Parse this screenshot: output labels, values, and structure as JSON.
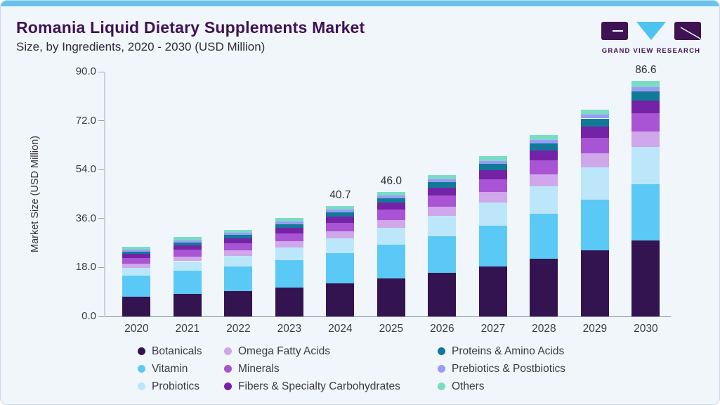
{
  "header": {
    "title": "Romania Liquid Dietary Supplements Market",
    "subtitle": "Size, by Ingredients, 2020 - 2030 (USD Million)",
    "logo_text": "GRAND VIEW RESEARCH"
  },
  "theme": {
    "card_bg": "#F1F6FA",
    "top_strip": "#67C4EF",
    "title_color": "#3F1254",
    "subtitle_color": "#2E2E38",
    "axis_text_color": "#3B3B45",
    "axis_line_color": "#C9D2DA",
    "baseline_color": "#8F979E",
    "logo_purple": "#3F1254",
    "logo_cyan": "#4EC3F0"
  },
  "chart_data": {
    "type": "bar",
    "stacked": true,
    "title": "Romania Liquid Dietary Supplements Market Size, by Ingredients, 2020 - 2030 (USD Million)",
    "xlabel": "",
    "ylabel": "Market Size (USD Million)",
    "ylim": [
      0,
      90
    ],
    "y_ticks": [
      0,
      18,
      36,
      54,
      72,
      90
    ],
    "y_tick_labels": [
      "0.0",
      "18.0",
      "36.0",
      "54.0",
      "72.0",
      "90.0"
    ],
    "grid": false,
    "legend_position": "bottom",
    "categories": [
      "2020",
      "2021",
      "2022",
      "2023",
      "2024",
      "2025",
      "2026",
      "2027",
      "2028",
      "2029",
      "2030"
    ],
    "series": [
      {
        "name": "Botanicals",
        "color": "#331450",
        "values": [
          7.3,
          8.4,
          9.3,
          10.7,
          12.2,
          14.0,
          16.0,
          18.3,
          21.1,
          24.4,
          27.9
        ]
      },
      {
        "name": "Vitamin",
        "color": "#5BC9F5",
        "values": [
          7.6,
          8.5,
          9.1,
          10.1,
          11.1,
          12.3,
          13.6,
          15.1,
          16.7,
          18.6,
          20.6
        ]
      },
      {
        "name": "Probiotics",
        "color": "#BCE7FA",
        "values": [
          2.9,
          3.4,
          3.9,
          4.6,
          5.4,
          6.3,
          7.4,
          8.6,
          10.1,
          11.9,
          13.9
        ]
      },
      {
        "name": "Omega Fatty Acids",
        "color": "#CFA7EA",
        "values": [
          1.5,
          1.7,
          1.9,
          2.2,
          2.5,
          2.9,
          3.3,
          3.8,
          4.3,
          5.0,
          5.7
        ]
      },
      {
        "name": "Minerals",
        "color": "#A854D4",
        "values": [
          2.2,
          2.5,
          2.7,
          3.0,
          3.3,
          3.7,
          4.2,
          4.7,
          5.2,
          5.9,
          6.6
        ]
      },
      {
        "name": "Fibers & Specialty Carbohydrates",
        "color": "#7523A6",
        "values": [
          1.5,
          1.7,
          1.9,
          2.1,
          2.3,
          2.6,
          2.9,
          3.3,
          3.7,
          4.1,
          4.7
        ]
      },
      {
        "name": "Proteins & Amino Acids",
        "color": "#107A98",
        "values": [
          0.9,
          1.0,
          1.1,
          1.3,
          1.5,
          1.7,
          1.9,
          2.2,
          2.6,
          2.9,
          3.4
        ]
      },
      {
        "name": "Prebiotics & Postbiotics",
        "color": "#9B9BF7",
        "values": [
          0.7,
          0.8,
          0.8,
          0.9,
          1.0,
          1.0,
          1.1,
          1.2,
          1.3,
          1.4,
          1.6
        ]
      },
      {
        "name": "Others",
        "color": "#7BDCC6",
        "values": [
          1.0,
          1.1,
          1.1,
          1.2,
          1.3,
          1.4,
          1.6,
          1.7,
          1.8,
          1.9,
          2.2
        ]
      }
    ],
    "totals": [
      25.6,
      29.1,
      31.8,
      36.1,
      40.7,
      46.0,
      52.0,
      58.9,
      66.8,
      76.1,
      86.6
    ],
    "bar_labels": {
      "2024": "40.7",
      "2025": "46.0",
      "2030": "86.6"
    }
  },
  "legend": {
    "columns": [
      [
        0,
        1,
        2
      ],
      [
        3,
        4,
        5
      ],
      [
        6,
        7,
        8
      ]
    ]
  }
}
